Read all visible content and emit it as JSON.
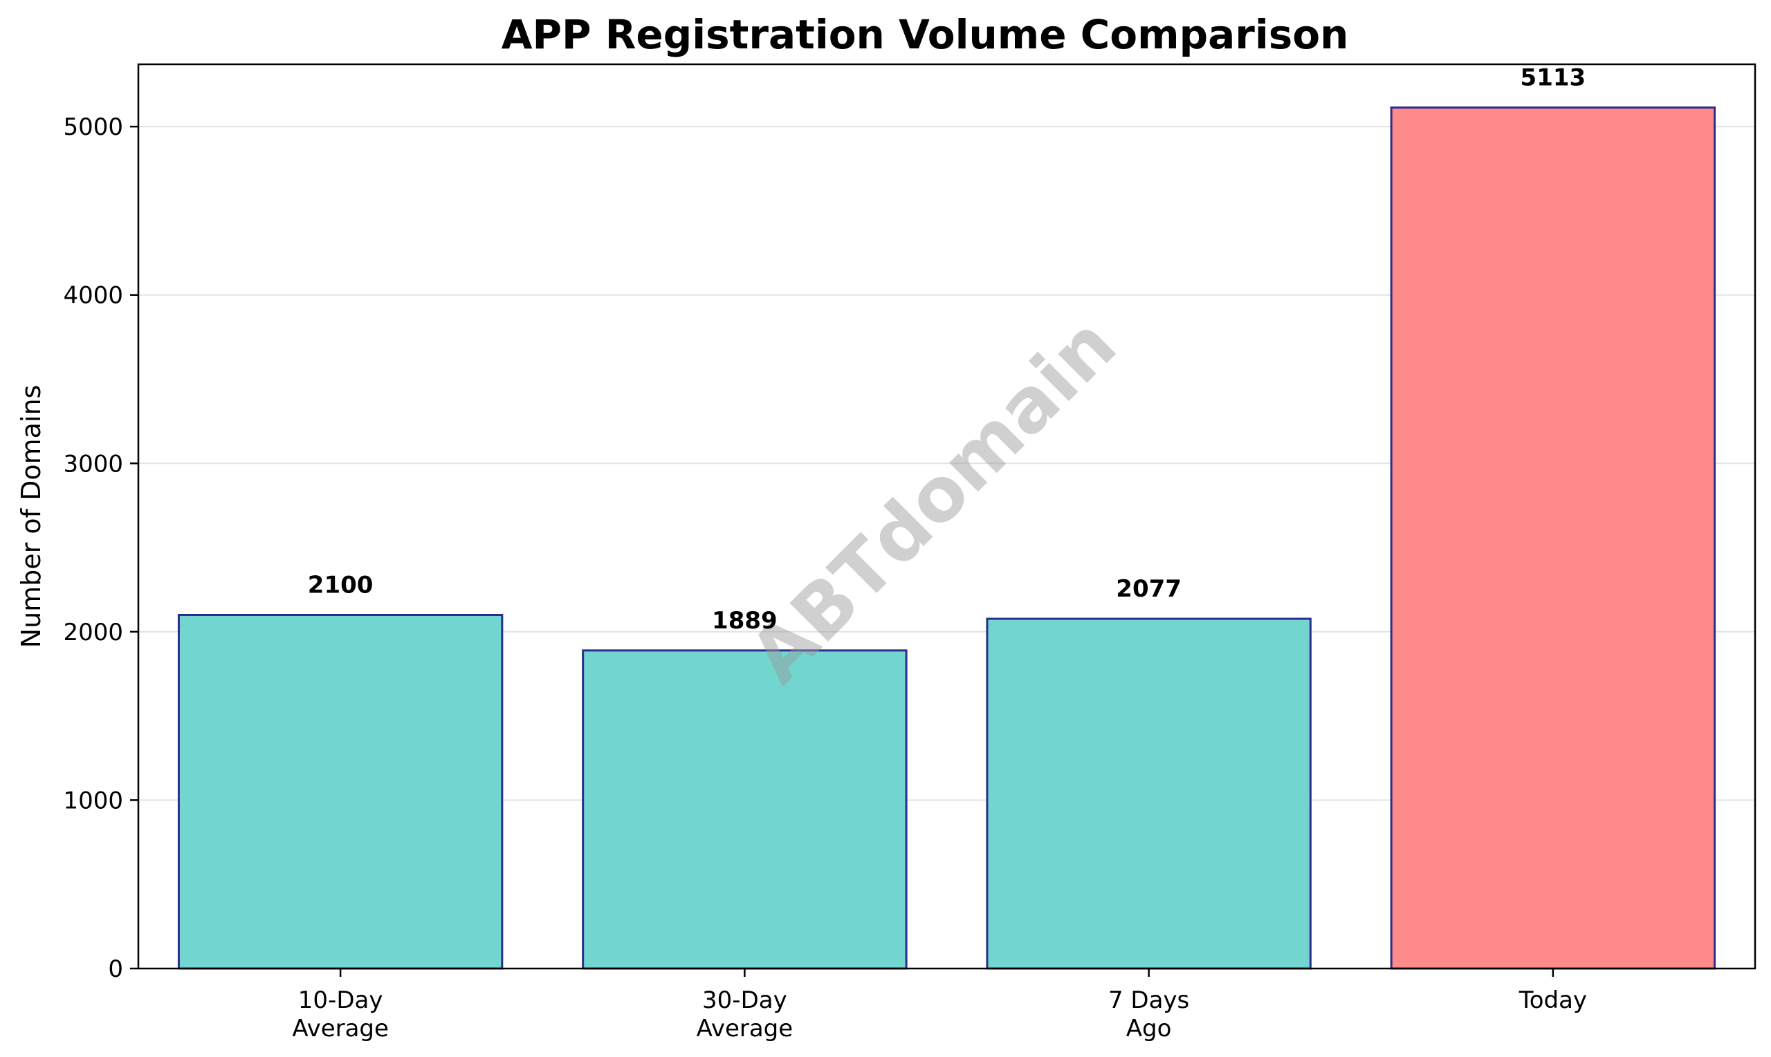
{
  "chart_data": {
    "type": "bar",
    "title": "APP Registration Volume Comparison",
    "xlabel": "",
    "ylabel": "Number of Domains",
    "categories": [
      [
        "10-Day",
        "Average"
      ],
      [
        "30-Day",
        "Average"
      ],
      [
        "7 Days",
        "Ago"
      ],
      [
        "Today"
      ]
    ],
    "values": [
      2100,
      1889,
      2077,
      5113
    ],
    "value_labels": [
      "2100",
      "1889",
      "2077",
      "5113"
    ],
    "ylim": [
      0,
      5370
    ],
    "yticks": [
      0,
      1000,
      2000,
      3000,
      4000,
      5000
    ],
    "grid": "horizontal",
    "legend": "none",
    "bar_colors": [
      "#72d5cf",
      "#72d5cf",
      "#72d5cf",
      "#ff8a8a"
    ],
    "bar_edge_color": "#2b2d8c",
    "watermark": "ABTdomain"
  }
}
